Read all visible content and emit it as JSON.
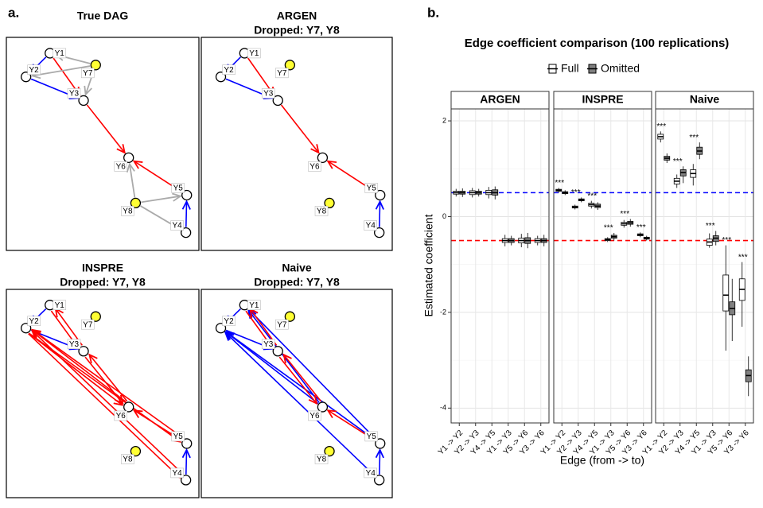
{
  "panel_labels": [
    "a.",
    "b."
  ],
  "diagrams": [
    {
      "title": [
        "True DAG"
      ],
      "nodes": [
        {
          "label": "Y1",
          "color": "#ffffff"
        },
        {
          "label": "Y2",
          "color": "#ffffff"
        },
        {
          "label": "Y3",
          "color": "#ffffff"
        },
        {
          "label": "Y4",
          "color": "#ffffff"
        },
        {
          "label": "Y5",
          "color": "#ffffff"
        },
        {
          "label": "Y6",
          "color": "#ffffff"
        },
        {
          "label": "Y7",
          "color": "#ffff33"
        },
        {
          "label": "Y8",
          "color": "#ffff33"
        }
      ]
    },
    {
      "title": [
        "ARGEN",
        "Dropped: Y7, Y8"
      ],
      "nodes": [
        {
          "label": "Y1",
          "color": "#ffffff"
        },
        {
          "label": "Y2",
          "color": "#ffffff"
        },
        {
          "label": "Y3",
          "color": "#ffffff"
        },
        {
          "label": "Y4",
          "color": "#ffffff"
        },
        {
          "label": "Y5",
          "color": "#ffffff"
        },
        {
          "label": "Y6",
          "color": "#ffffff"
        },
        {
          "label": "Y7",
          "color": "#ffff33"
        },
        {
          "label": "Y8",
          "color": "#ffff33"
        }
      ]
    },
    {
      "title": [
        "INSPRE",
        "Dropped: Y7, Y8"
      ],
      "nodes": [
        {
          "label": "Y1",
          "color": "#ffffff"
        },
        {
          "label": "Y2",
          "color": "#ffffff"
        },
        {
          "label": "Y3",
          "color": "#ffffff"
        },
        {
          "label": "Y4",
          "color": "#ffffff"
        },
        {
          "label": "Y5",
          "color": "#ffffff"
        },
        {
          "label": "Y6",
          "color": "#ffffff"
        },
        {
          "label": "Y7",
          "color": "#ffff33"
        },
        {
          "label": "Y8",
          "color": "#ffff33"
        }
      ]
    },
    {
      "title": [
        "Naive",
        "Dropped: Y7, Y8"
      ],
      "nodes": [
        {
          "label": "Y1",
          "color": "#ffffff"
        },
        {
          "label": "Y2",
          "color": "#ffffff"
        },
        {
          "label": "Y3",
          "color": "#ffffff"
        },
        {
          "label": "Y4",
          "color": "#ffffff"
        },
        {
          "label": "Y5",
          "color": "#ffffff"
        },
        {
          "label": "Y6",
          "color": "#ffffff"
        },
        {
          "label": "Y7",
          "color": "#ffff33"
        },
        {
          "label": "Y8",
          "color": "#ffff33"
        }
      ]
    }
  ],
  "chart_data": {
    "type": "box",
    "title": "Edge coefficient comparison (100 replications)",
    "x_label": "Edge (from -> to)",
    "y_label": "Estimated coefficient",
    "categories": [
      "Y1 -> Y2",
      "Y2 -> Y3",
      "Y4 -> Y5",
      "Y1 -> Y3",
      "Y5 -> Y6",
      "Y3 -> Y6"
    ],
    "series": [
      {
        "name": "Full",
        "color": "#ffffff"
      },
      {
        "name": "Omitted",
        "color": "#808080"
      }
    ],
    "ylim": [
      -4.31,
      2.25
    ],
    "yticks": [
      -4,
      -2,
      0,
      2
    ],
    "minor_yticks": [
      -3,
      -1,
      1
    ],
    "grid": true,
    "reference_lines": [
      {
        "value": 0.5,
        "color": "#0000ff"
      },
      {
        "value": -0.5,
        "color": "#ff0000"
      }
    ],
    "facets": [
      {
        "name": "ARGEN",
        "significance": [
          null,
          null,
          null,
          null,
          null,
          null
        ],
        "stats": [
          {
            "median": [
              0.5,
              0.5,
              0.5,
              -0.5,
              -0.5,
              -0.5
            ],
            "q1": [
              0.47,
              0.46,
              0.46,
              -0.54,
              -0.55,
              -0.54
            ],
            "q3": [
              0.53,
              0.54,
              0.55,
              -0.46,
              -0.45,
              -0.46
            ],
            "whislo": [
              0.42,
              0.4,
              0.38,
              -0.62,
              -0.64,
              -0.6
            ],
            "whishi": [
              0.58,
              0.6,
              0.62,
              -0.38,
              -0.36,
              -0.4
            ]
          },
          {
            "median": [
              0.5,
              0.5,
              0.5,
              -0.5,
              -0.5,
              -0.5
            ],
            "q1": [
              0.47,
              0.47,
              0.45,
              -0.54,
              -0.56,
              -0.54
            ],
            "q3": [
              0.53,
              0.53,
              0.56,
              -0.46,
              -0.44,
              -0.46
            ],
            "whislo": [
              0.41,
              0.42,
              0.36,
              -0.6,
              -0.66,
              -0.62
            ],
            "whishi": [
              0.59,
              0.58,
              0.63,
              -0.4,
              -0.34,
              -0.38
            ]
          }
        ]
      },
      {
        "name": "INSPRE",
        "significance": [
          "***",
          "***",
          "***",
          "***",
          "***",
          "***"
        ],
        "stats": [
          {
            "median": [
              0.55,
              0.2,
              0.25,
              -0.48,
              -0.15,
              -0.38
            ],
            "q1": [
              0.53,
              0.18,
              0.22,
              -0.5,
              -0.18,
              -0.4
            ],
            "q3": [
              0.57,
              0.22,
              0.28,
              -0.46,
              -0.12,
              -0.36
            ],
            "whislo": [
              0.5,
              0.15,
              0.17,
              -0.53,
              -0.23,
              -0.43
            ],
            "whishi": [
              0.6,
              0.25,
              0.33,
              -0.43,
              -0.07,
              -0.33
            ]
          },
          {
            "median": [
              0.5,
              0.35,
              0.22,
              -0.42,
              -0.13,
              -0.45
            ],
            "q1": [
              0.48,
              0.33,
              0.19,
              -0.45,
              -0.16,
              -0.47
            ],
            "q3": [
              0.52,
              0.37,
              0.26,
              -0.39,
              -0.1,
              -0.43
            ],
            "whislo": [
              0.45,
              0.3,
              0.14,
              -0.5,
              -0.21,
              -0.5
            ],
            "whishi": [
              0.55,
              0.4,
              0.3,
              -0.34,
              -0.05,
              -0.4
            ]
          }
        ]
      },
      {
        "name": "Naive",
        "significance": [
          "***",
          "***",
          "***",
          "***",
          "***",
          "***"
        ],
        "stats": [
          {
            "median": [
              1.67,
              0.74,
              0.9,
              -0.53,
              -1.64,
              -1.52
            ],
            "q1": [
              1.62,
              0.68,
              0.82,
              -0.6,
              -1.97,
              -1.75
            ],
            "q3": [
              1.72,
              0.8,
              0.98,
              -0.47,
              -1.22,
              -1.3
            ],
            "whislo": [
              1.55,
              0.6,
              0.65,
              -0.65,
              -2.8,
              -2.3
            ],
            "whishi": [
              1.78,
              0.88,
              1.1,
              -0.35,
              -0.6,
              -0.95
            ]
          },
          {
            "median": [
              1.22,
              0.92,
              1.37,
              -0.45,
              -1.92,
              -3.32
            ],
            "q1": [
              1.18,
              0.85,
              1.3,
              -0.52,
              -2.05,
              -3.45
            ],
            "q3": [
              1.26,
              0.98,
              1.45,
              -0.4,
              -1.78,
              -3.2
            ],
            "whislo": [
              1.12,
              0.7,
              1.2,
              -0.6,
              -2.6,
              -3.75
            ],
            "whishi": [
              1.32,
              1.05,
              1.55,
              -0.3,
              -1.3,
              -2.92
            ]
          }
        ]
      }
    ]
  }
}
